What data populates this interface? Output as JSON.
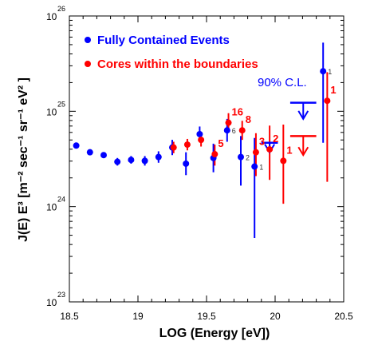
{
  "chart_data": {
    "type": "scatter",
    "x_axis": {
      "label": "LOG (Energy [eV])",
      "range": [
        18.5,
        20.5
      ],
      "ticks": [
        18.5,
        19,
        19.5,
        20,
        20.5
      ],
      "tick_labels": [
        "18.5",
        "19",
        "19.5",
        "20",
        "20.5"
      ]
    },
    "y_axis": {
      "label": "J(E) E³ [m⁻² sec⁻¹ sr⁻¹ eV² ]",
      "scale": "log",
      "range_log10": [
        23,
        26
      ],
      "ticks_log10": [
        23,
        24,
        25,
        26
      ],
      "tick_base": "10",
      "tick_exponents": [
        "23",
        "24",
        "25",
        "26"
      ]
    },
    "legend": {
      "position": "top-left",
      "entries": [
        {
          "label": "Fully Contained Events",
          "color": "#0000ff"
        },
        {
          "label": "Cores within the boundaries",
          "color": "#ff0000"
        }
      ]
    },
    "series": [
      {
        "name": "Fully Contained Events",
        "color": "#0000ff",
        "points": [
          {
            "x": 18.55,
            "log10_y": 24.64,
            "err_lo": 0.02,
            "err_hi": 0.02,
            "label": ""
          },
          {
            "x": 18.65,
            "log10_y": 24.57,
            "err_lo": 0.03,
            "err_hi": 0.03,
            "label": ""
          },
          {
            "x": 18.75,
            "log10_y": 24.54,
            "err_lo": 0.03,
            "err_hi": 0.03,
            "label": ""
          },
          {
            "x": 18.85,
            "log10_y": 24.47,
            "err_lo": 0.04,
            "err_hi": 0.04,
            "label": ""
          },
          {
            "x": 18.95,
            "log10_y": 24.49,
            "err_lo": 0.04,
            "err_hi": 0.04,
            "label": ""
          },
          {
            "x": 19.05,
            "log10_y": 24.48,
            "err_lo": 0.05,
            "err_hi": 0.05,
            "label": ""
          },
          {
            "x": 19.15,
            "log10_y": 24.52,
            "err_lo": 0.06,
            "err_hi": 0.06,
            "label": ""
          },
          {
            "x": 19.25,
            "log10_y": 24.62,
            "err_lo": 0.08,
            "err_hi": 0.08,
            "label": ""
          },
          {
            "x": 19.35,
            "log10_y": 24.45,
            "err_lo": 0.12,
            "err_hi": 0.12,
            "label": ""
          },
          {
            "x": 19.45,
            "log10_y": 24.76,
            "err_lo": 0.08,
            "err_hi": 0.08,
            "label": ""
          },
          {
            "x": 19.55,
            "log10_y": 24.51,
            "err_lo": 0.15,
            "err_hi": 0.15,
            "label": ""
          },
          {
            "x": 19.65,
            "log10_y": 24.8,
            "err_lo": 0.12,
            "err_hi": 0.12,
            "label": "6"
          },
          {
            "x": 19.75,
            "log10_y": 24.52,
            "err_lo": 0.3,
            "err_hi": 0.22,
            "label": "2"
          },
          {
            "x": 19.85,
            "log10_y": 24.42,
            "err_lo": 0.75,
            "err_hi": 0.3,
            "label": "1"
          },
          {
            "x": 20.35,
            "log10_y": 25.42,
            "err_lo": 0.75,
            "err_hi": 0.3,
            "label": "1"
          }
        ]
      },
      {
        "name": "Cores within the boundaries",
        "color": "#ff0000",
        "points": [
          {
            "x": 19.26,
            "log10_y": 24.62,
            "err_lo": 0.06,
            "err_hi": 0.06,
            "label": ""
          },
          {
            "x": 19.36,
            "log10_y": 24.65,
            "err_lo": 0.06,
            "err_hi": 0.06,
            "label": ""
          },
          {
            "x": 19.46,
            "log10_y": 24.7,
            "err_lo": 0.07,
            "err_hi": 0.07,
            "label": ""
          },
          {
            "x": 19.56,
            "log10_y": 24.55,
            "err_lo": 0.12,
            "err_hi": 0.1,
            "label": "5"
          },
          {
            "x": 19.66,
            "log10_y": 24.88,
            "err_lo": 0.1,
            "err_hi": 0.1,
            "label": "16"
          },
          {
            "x": 19.76,
            "log10_y": 24.8,
            "err_lo": 0.1,
            "err_hi": 0.1,
            "label": "8"
          },
          {
            "x": 19.86,
            "log10_y": 24.57,
            "err_lo": 0.25,
            "err_hi": 0.2,
            "label": "3"
          },
          {
            "x": 19.96,
            "log10_y": 24.6,
            "err_lo": 0.32,
            "err_hi": 0.25,
            "label": "2"
          },
          {
            "x": 20.06,
            "log10_y": 24.48,
            "err_lo": 0.45,
            "err_hi": 0.38,
            "label": "1"
          },
          {
            "x": 20.38,
            "log10_y": 25.11,
            "err_lo": 0.85,
            "err_hi": 0.3,
            "label": "1"
          }
        ]
      }
    ],
    "upper_limits": {
      "label": "90% C.L.",
      "items": [
        {
          "color": "#0000ff",
          "x_from": 19.9,
          "x_to": 20.02,
          "log10_y": 24.67,
          "cap_len": 0.1
        },
        {
          "color": "#0000ff",
          "x_from": 20.11,
          "x_to": 20.3,
          "log10_y": 25.09,
          "cap_len": 0.17
        },
        {
          "color": "#ff0000",
          "x_from": 20.11,
          "x_to": 20.3,
          "log10_y": 24.74,
          "cap_len": 0.2
        }
      ]
    }
  }
}
